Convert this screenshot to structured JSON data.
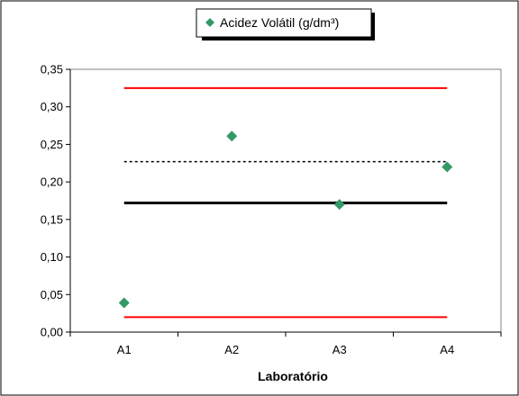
{
  "chart_data": {
    "type": "scatter",
    "title": "",
    "xlabel": "Laboratório",
    "ylabel": "",
    "categories": [
      "A1",
      "A2",
      "A3",
      "A4"
    ],
    "series": [
      {
        "name": "Acidez Volátil (g/dm³)",
        "values": [
          0.039,
          0.261,
          0.17,
          0.22
        ],
        "color": "#339966",
        "marker": "diamond"
      }
    ],
    "reference_lines": [
      {
        "value": 0.325,
        "style": "solid",
        "color": "#ff0000"
      },
      {
        "value": 0.02,
        "style": "solid",
        "color": "#ff0000"
      },
      {
        "value": 0.172,
        "style": "solid-thick",
        "color": "#000000"
      },
      {
        "value": 0.227,
        "style": "dotted",
        "color": "#000000"
      }
    ],
    "yticks": [
      "0,00",
      "0,05",
      "0,10",
      "0,15",
      "0,20",
      "0,25",
      "0,30",
      "0,35"
    ],
    "ylim": [
      0,
      0.35
    ],
    "grid": false,
    "legend_position": "top"
  }
}
